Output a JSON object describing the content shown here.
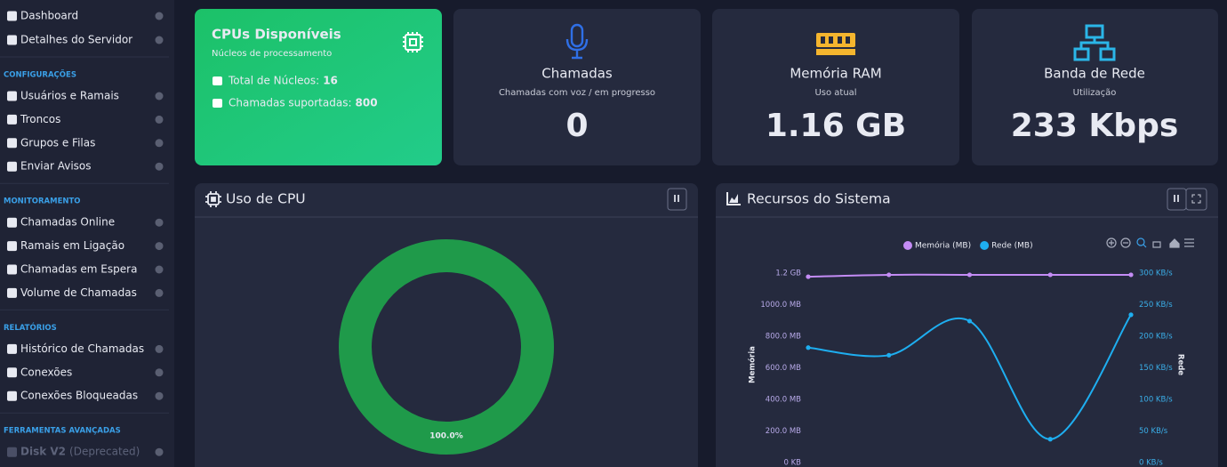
{
  "sidebar": {
    "top_items": [
      {
        "label": "Dashboard"
      },
      {
        "label": "Detalhes do Servidor"
      }
    ],
    "sections": [
      {
        "heading": "CONFIGURAÇÕES",
        "items": [
          {
            "label": "Usuários e Ramais"
          },
          {
            "label": "Troncos"
          },
          {
            "label": "Grupos e Filas"
          },
          {
            "label": "Enviar Avisos"
          }
        ]
      },
      {
        "heading": "MONITORAMENTO",
        "items": [
          {
            "label": "Chamadas Online"
          },
          {
            "label": "Ramais em Ligação"
          },
          {
            "label": "Chamadas em Espera"
          },
          {
            "label": "Volume de Chamadas"
          }
        ]
      },
      {
        "heading": "RELATÓRIOS",
        "items": [
          {
            "label": "Histórico de Chamadas"
          },
          {
            "label": "Conexões"
          },
          {
            "label": "Conexões Bloqueadas"
          }
        ]
      },
      {
        "heading": "FERRAMENTAS AVANÇADAS",
        "items": [
          {
            "label": "Disk V2",
            "note": "(Deprecated)"
          }
        ]
      }
    ]
  },
  "cards": [
    {
      "title": "CPUs Disponíveis",
      "subtitle": "Núcleos de processamento",
      "rows": [
        {
          "label": "Total de Núcleos:",
          "value": "16"
        },
        {
          "label": "Chamadas suportadas:",
          "value": "800"
        }
      ]
    },
    {
      "title": "Chamadas",
      "subtitle": "Chamadas com voz / em progresso",
      "value": "0"
    },
    {
      "title": "Memória RAM",
      "subtitle": "Uso atual",
      "value": "1.16 GB"
    },
    {
      "title": "Banda de Rede",
      "subtitle": "Utilização",
      "value": "233 Kbps"
    }
  ],
  "chart_data": [
    {
      "type": "pie",
      "title": "Uso de CPU",
      "values": [
        100
      ],
      "value_labels": [
        "100.0%"
      ],
      "color": "#1f9a4a"
    },
    {
      "type": "line",
      "title": "Recursos do Sistema",
      "categories": [
        null,
        null,
        null,
        null,
        null
      ],
      "series": [
        {
          "name": "Memória (MB)",
          "color": "#c48cf5",
          "values": [
            1177,
            1189,
            1189,
            1189,
            1189
          ]
        },
        {
          "name": "Rede (MB)",
          "color": "#1eaef0",
          "axis": "y2",
          "values": [
            182,
            170,
            224,
            37,
            234
          ]
        }
      ],
      "ylabel": "Memória",
      "y2label": "Rede",
      "ylim": [
        0,
        1200
      ],
      "yticks": [
        {
          "value": 0,
          "label": "0 KB"
        },
        {
          "value": 200,
          "label": "200.0 MB"
        },
        {
          "value": 400,
          "label": "400.0 MB"
        },
        {
          "value": 600,
          "label": "600.0 MB"
        },
        {
          "value": 800,
          "label": "800.0 MB"
        },
        {
          "value": 1000,
          "label": "1000.0 MB"
        },
        {
          "value": 1200,
          "label": "1.2 GB"
        }
      ],
      "y2lim": [
        0,
        300
      ],
      "y2ticks": [
        {
          "value": 0,
          "label": "0 KB/s"
        },
        {
          "value": 50,
          "label": "50 KB/s"
        },
        {
          "value": 100,
          "label": "100 KB/s"
        },
        {
          "value": 150,
          "label": "150 KB/s"
        },
        {
          "value": 200,
          "label": "200 KB/s"
        },
        {
          "value": 250,
          "label": "250 KB/s"
        },
        {
          "value": 300,
          "label": "300 KB/s"
        }
      ]
    }
  ]
}
